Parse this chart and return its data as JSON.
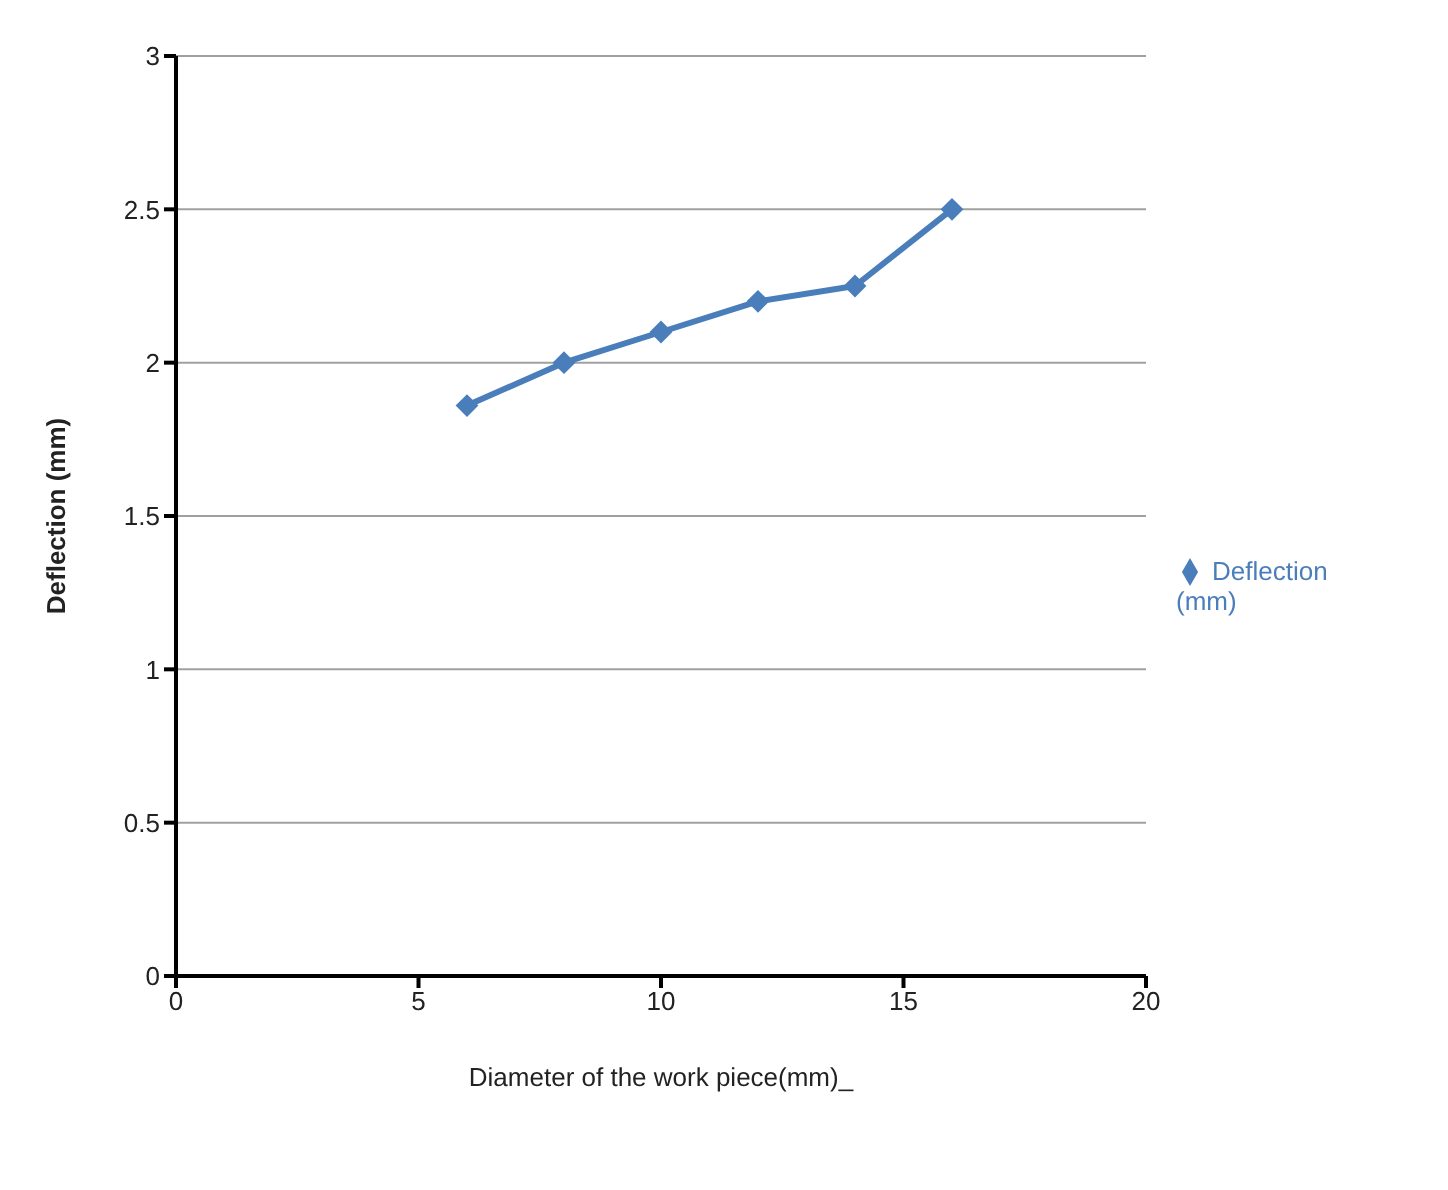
{
  "chart_data": {
    "type": "line",
    "xlabel": "Diameter of the work piece(mm)_",
    "ylabel": "Deflection (mm)",
    "x": [
      6,
      8,
      10,
      12,
      14,
      16
    ],
    "series": [
      {
        "name": "Deflection (mm)",
        "color": "#4a7ebb",
        "values": [
          1.86,
          2.0,
          2.1,
          2.2,
          2.25,
          2.5
        ]
      }
    ],
    "xlim": [
      0,
      20
    ],
    "xticks": [
      0,
      5,
      10,
      15,
      20
    ],
    "ylim": [
      0,
      3
    ],
    "yticks": [
      0,
      0.5,
      1,
      1.5,
      2,
      2.5,
      3
    ],
    "grid": "y",
    "legend": "right",
    "marker": "diamond",
    "line_style": "solid"
  }
}
